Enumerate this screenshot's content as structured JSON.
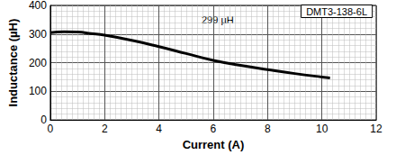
{
  "chart_data": {
    "type": "line",
    "title": "DMT3-138-6L",
    "xlabel": "Current (A)",
    "ylabel": "Inductance (µH)",
    "annotations": [
      "299 µH"
    ],
    "x": [
      0,
      0.5,
      1,
      1.5,
      2,
      3,
      4,
      5,
      6,
      7,
      8,
      9,
      10,
      10.3
    ],
    "values": [
      305,
      308,
      307,
      302,
      296,
      278,
      256,
      232,
      208,
      191,
      176,
      162,
      150,
      147
    ],
    "color": "#000000",
    "xlim": [
      0,
      12
    ],
    "xticks": [
      0,
      2,
      4,
      6,
      8,
      10,
      12
    ],
    "ylim": [
      0,
      400
    ],
    "yticks": [
      0,
      100,
      200,
      300,
      400
    ],
    "grid": true
  }
}
